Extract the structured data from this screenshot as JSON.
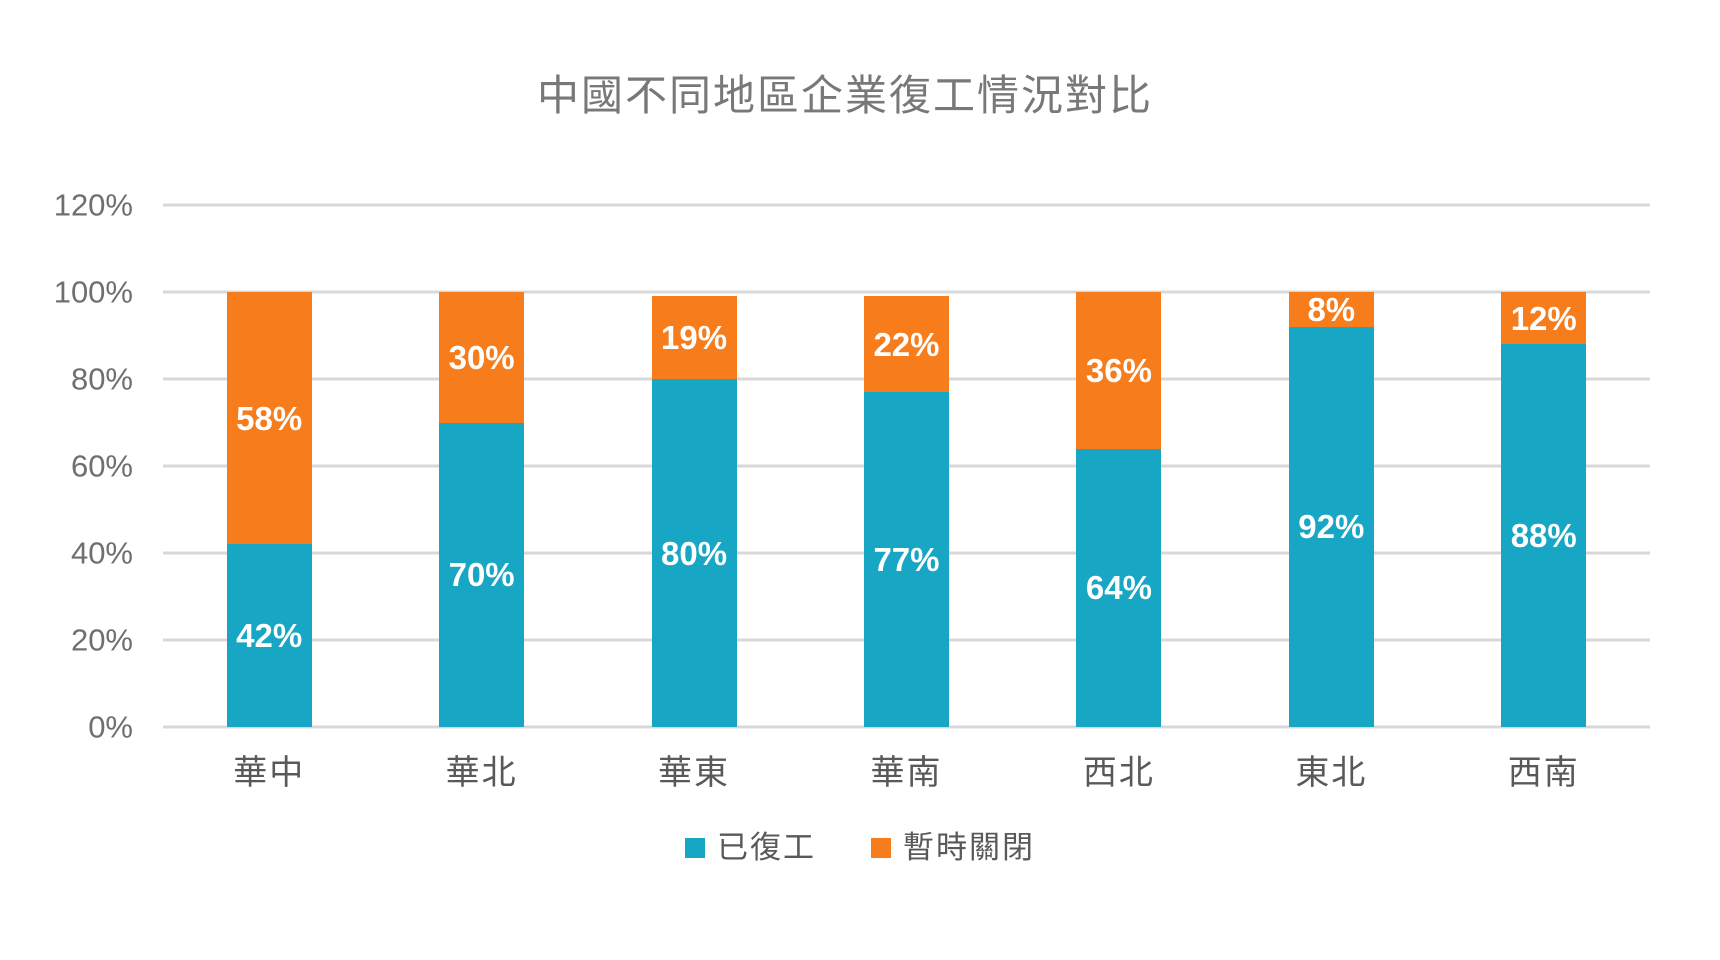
{
  "colors": {
    "resumed": "#17A6C4",
    "closed": "#F67C1C",
    "gridline": "#D8D8D8",
    "title_text": "#787878",
    "axis_text": "#6F6F6F",
    "category_text": "#595959",
    "data_label_text": "#FFFFFF"
  },
  "chart_data": {
    "type": "bar",
    "stacked": true,
    "title": "中國不同地區企業復工情況對比",
    "xlabel": "",
    "ylabel": "",
    "categories": [
      "華中",
      "華北",
      "華東",
      "華南",
      "西北",
      "東北",
      "西南"
    ],
    "series": [
      {
        "key": "resumed",
        "name": "已復工",
        "color": "#17A6C4",
        "values": [
          42,
          70,
          80,
          77,
          64,
          92,
          88
        ]
      },
      {
        "key": "closed",
        "name": "暫時關閉",
        "color": "#F67C1C",
        "values": [
          58,
          30,
          19,
          22,
          36,
          8,
          12
        ]
      }
    ],
    "value_suffix": "%",
    "ylim": [
      0,
      120
    ],
    "ytick_step": 20,
    "ytick_labels": [
      "0%",
      "20%",
      "40%",
      "60%",
      "80%",
      "100%",
      "120%"
    ],
    "grid": true,
    "legend_position": "bottom"
  }
}
